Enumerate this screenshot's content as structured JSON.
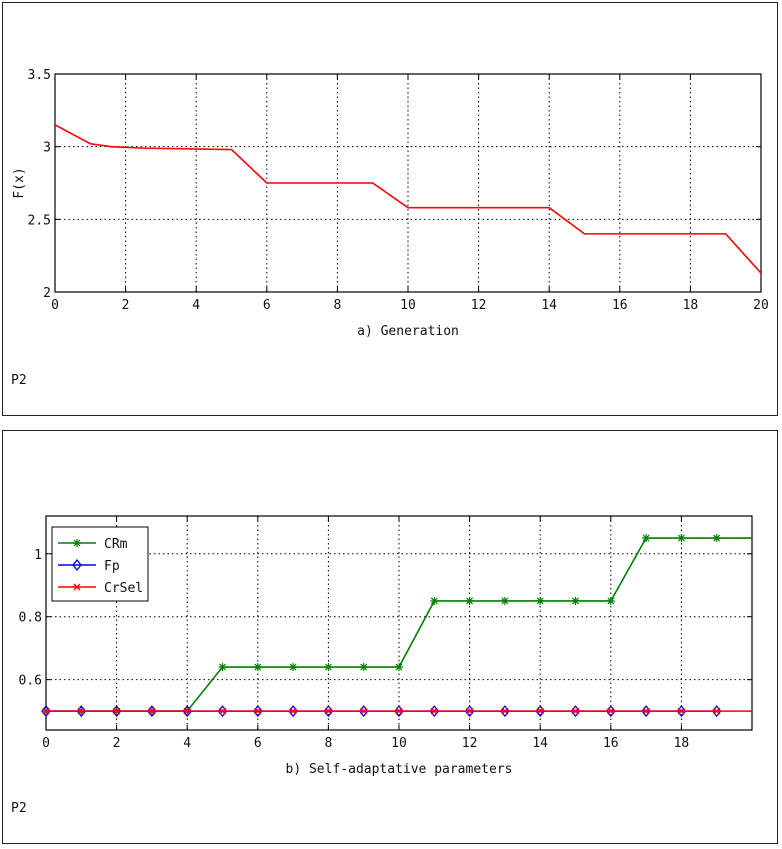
{
  "chart_data": [
    {
      "type": "line",
      "panel_label": "P2",
      "xlabel": "a) Generation",
      "ylabel": "F(x)",
      "xlim": [
        0,
        20
      ],
      "ylim": [
        2,
        3.5
      ],
      "grid": true,
      "x_ticks": [
        "0",
        "2",
        "4",
        "6",
        "8",
        "10",
        "12",
        "14",
        "16",
        "18",
        "20"
      ],
      "y_ticks": [
        "2",
        "2.5",
        "3",
        "3.5"
      ],
      "series": [
        {
          "name": "F(x)",
          "color": "#ff0000",
          "marker": "none",
          "x": [
            0,
            1,
            1.6,
            2.5,
            5,
            6,
            9,
            10,
            14,
            15,
            19,
            20
          ],
          "y": [
            3.15,
            3.02,
            3.0,
            2.99,
            2.98,
            2.75,
            2.75,
            2.58,
            2.58,
            2.4,
            2.4,
            2.13
          ]
        }
      ]
    },
    {
      "type": "line",
      "panel_label": "P2",
      "xlabel": "b) Self-adaptative parameters",
      "ylabel": "",
      "xlim": [
        0,
        20
      ],
      "ylim": [
        0.44,
        1.12
      ],
      "grid": true,
      "x_ticks": [
        "0",
        "2",
        "4",
        "6",
        "8",
        "10",
        "12",
        "14",
        "16",
        "18"
      ],
      "y_ticks": [
        "0.6",
        "0.8",
        "1"
      ],
      "legend_position": "top-left",
      "series": [
        {
          "name": "CRm",
          "color": "#008000",
          "marker": "star",
          "x": [
            0,
            1,
            2,
            3,
            4,
            5,
            6,
            7,
            8,
            9,
            10,
            11,
            12,
            13,
            14,
            15,
            16,
            17,
            18,
            19,
            20
          ],
          "y": [
            0.5,
            0.5,
            0.5,
            0.5,
            0.5,
            0.64,
            0.64,
            0.64,
            0.64,
            0.64,
            0.64,
            0.85,
            0.85,
            0.85,
            0.85,
            0.85,
            0.85,
            1.05,
            1.05,
            1.05,
            1.05
          ],
          "marker_count": 20
        },
        {
          "name": "Fp",
          "color": "#0000ff",
          "marker": "diamond",
          "x": [
            0,
            1,
            2,
            3,
            4,
            5,
            6,
            7,
            8,
            9,
            10,
            11,
            12,
            13,
            14,
            15,
            16,
            17,
            18,
            19
          ],
          "y": [
            0.5,
            0.5,
            0.5,
            0.5,
            0.5,
            0.5,
            0.5,
            0.5,
            0.5,
            0.5,
            0.5,
            0.5,
            0.5,
            0.5,
            0.5,
            0.5,
            0.5,
            0.5,
            0.5,
            0.5
          ]
        },
        {
          "name": "CrSel",
          "color": "#ff0000",
          "marker": "x",
          "x": [
            0,
            1,
            2,
            3,
            4,
            5,
            6,
            7,
            8,
            9,
            10,
            11,
            12,
            13,
            14,
            15,
            16,
            17,
            18,
            19,
            20
          ],
          "y": [
            0.5,
            0.5,
            0.5,
            0.5,
            0.5,
            0.5,
            0.5,
            0.5,
            0.5,
            0.5,
            0.5,
            0.5,
            0.5,
            0.5,
            0.5,
            0.5,
            0.5,
            0.5,
            0.5,
            0.5,
            0.5
          ],
          "marker_count": 20
        }
      ]
    }
  ]
}
